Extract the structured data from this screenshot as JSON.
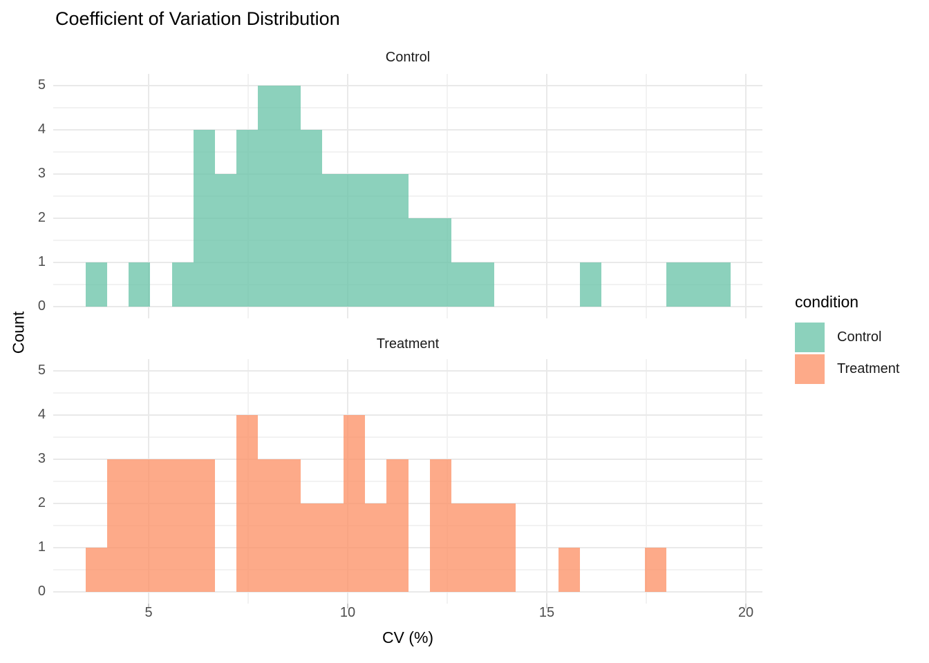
{
  "title": "Coefficient of Variation Distribution",
  "axes": {
    "x_title": "CV (%)",
    "y_title": "Count",
    "x_ticks": [
      5,
      10,
      15,
      20
    ],
    "y_ticks": [
      0,
      1,
      2,
      3,
      4,
      5
    ]
  },
  "legend": {
    "title": "condition",
    "items": [
      {
        "label": "Control",
        "color": "#66C2A5"
      },
      {
        "label": "Treatment",
        "color": "#FC8D62"
      }
    ]
  },
  "chart_data": {
    "type": "bar",
    "subtype": "faceted_histogram",
    "title": "Coefficient of Variation Distribution",
    "xlabel": "CV (%)",
    "ylabel": "Count",
    "facet_variable": "condition",
    "x_domain": [
      2.6,
      20.42
    ],
    "ylim": [
      0,
      5
    ],
    "x_breaks": [
      5,
      10,
      15,
      20
    ],
    "x_minor_breaks": [
      7.5,
      12.5,
      17.5
    ],
    "y_breaks": [
      0,
      1,
      2,
      3,
      4,
      5
    ],
    "y_minor_breaks": [
      0.5,
      1.5,
      2.5,
      3.5,
      4.5
    ],
    "grid": true,
    "legend_position": "right",
    "bin_start": 3.42,
    "binwidth": 0.54,
    "fill_alpha": 0.75,
    "facets": [
      {
        "name": "Control",
        "color": "#66C2A5",
        "counts": [
          1,
          0,
          1,
          0,
          1,
          4,
          3,
          4,
          5,
          5,
          4,
          3,
          3,
          3,
          3,
          2,
          2,
          1,
          1,
          0,
          0,
          0,
          0,
          1,
          0,
          0,
          0,
          1,
          1,
          1
        ]
      },
      {
        "name": "Treatment",
        "color": "#FC8D62",
        "counts": [
          1,
          3,
          3,
          3,
          3,
          3,
          0,
          4,
          3,
          3,
          2,
          2,
          4,
          2,
          3,
          0,
          3,
          2,
          2,
          2,
          0,
          0,
          1,
          0,
          0,
          0,
          1,
          0,
          0,
          0
        ]
      }
    ]
  }
}
